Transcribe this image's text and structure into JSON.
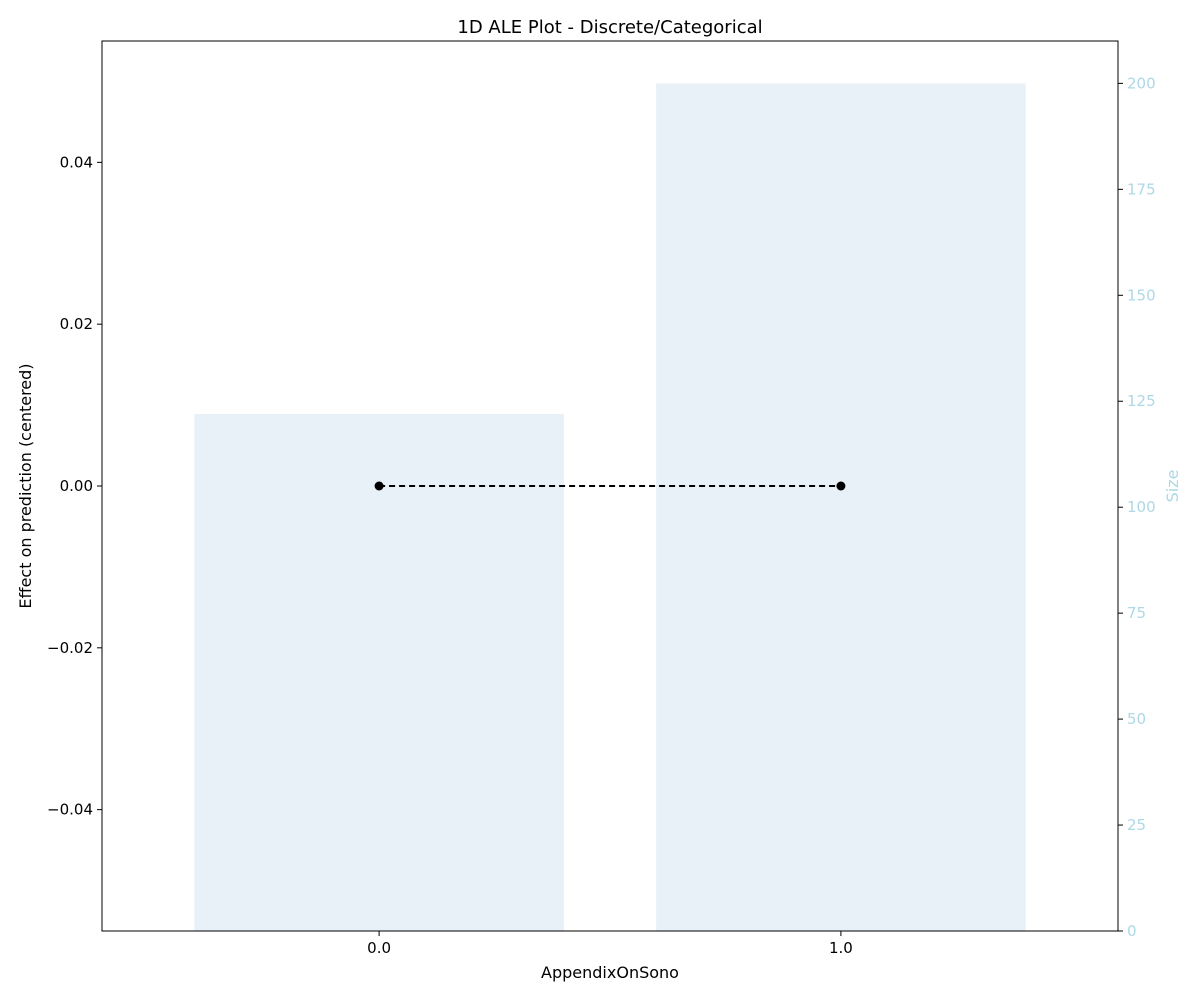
{
  "chart_data": {
    "type": "bar",
    "title": "1D ALE Plot - Discrete/Categorical",
    "xlabel": "AppendixOnSono",
    "ylabel": "Effect on prediction (centered)",
    "ylabel_right": "Size",
    "categories": [
      "0.0",
      "1.0"
    ],
    "ylim": [
      -0.055,
      0.055
    ],
    "ylim_right": [
      0,
      210
    ],
    "yticks": [
      -0.04,
      -0.02,
      0.0,
      0.02,
      0.04
    ],
    "ytick_labels": [
      "−0.04",
      "−0.02",
      "0.00",
      "0.02",
      "0.04"
    ],
    "yticks_right": [
      0,
      25,
      50,
      75,
      100,
      125,
      150,
      175,
      200
    ],
    "grid": false,
    "series": [
      {
        "kind": "bar",
        "axis": "right",
        "values": [
          122,
          200
        ],
        "color": "#e8f0f8"
      },
      {
        "kind": "line",
        "axis": "left",
        "values": [
          0.0,
          0.0
        ],
        "color": "#000000",
        "style": "dashed",
        "marker": "circle"
      }
    ],
    "colors": {
      "axis": "#000000",
      "right_axis": "#add8e6"
    }
  }
}
